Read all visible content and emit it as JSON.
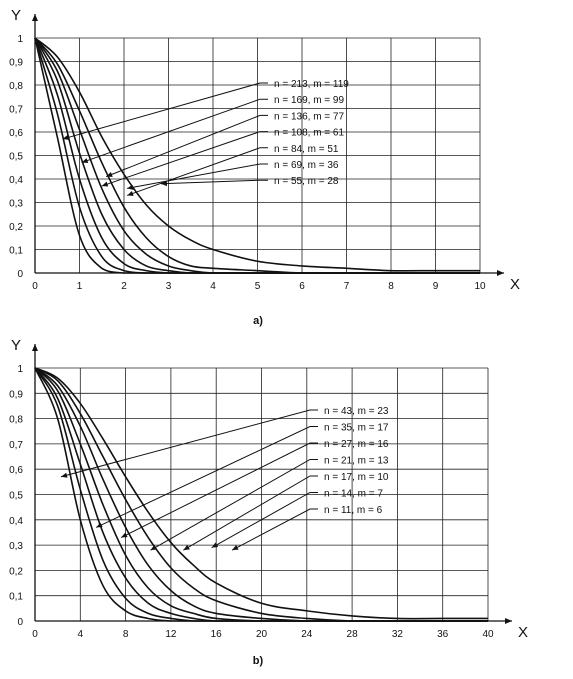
{
  "chart_data": [
    {
      "type": "line",
      "caption": "a)",
      "xlabel": "X",
      "ylabel": "Y",
      "xlim": [
        0,
        10
      ],
      "ylim": [
        0,
        1
      ],
      "grid": true,
      "x_ticks": [
        "0",
        "1",
        "2",
        "3",
        "4",
        "5",
        "6",
        "7",
        "8",
        "9",
        "10"
      ],
      "y_ticks": [
        "0",
        "0,1",
        "0,2",
        "0,3",
        "0,4",
        "0,5",
        "0,6",
        "0,7",
        "0,8",
        "0,9",
        "1"
      ],
      "x": [
        0,
        0.5,
        1,
        1.5,
        2,
        2.5,
        3,
        3.5,
        4,
        5,
        6,
        7,
        8,
        9,
        10
      ],
      "series": [
        {
          "name": "n = 213, m = 119",
          "values": [
            1,
            0.58,
            0.16,
            0.02,
            0,
            0,
            0,
            0,
            0,
            0,
            0,
            0,
            0,
            0,
            0
          ]
        },
        {
          "name": "n = 169, m = 99",
          "values": [
            1,
            0.68,
            0.28,
            0.07,
            0.01,
            0,
            0,
            0,
            0,
            0,
            0,
            0,
            0,
            0,
            0
          ]
        },
        {
          "name": "n = 136, m = 77",
          "values": [
            1,
            0.76,
            0.4,
            0.15,
            0.04,
            0.01,
            0,
            0,
            0,
            0,
            0,
            0,
            0,
            0,
            0
          ]
        },
        {
          "name": "n = 108, m = 61",
          "values": [
            1,
            0.82,
            0.51,
            0.25,
            0.1,
            0.03,
            0.01,
            0,
            0,
            0,
            0,
            0,
            0,
            0,
            0
          ]
        },
        {
          "name": "n = 84, m = 51",
          "values": [
            1,
            0.86,
            0.61,
            0.36,
            0.18,
            0.08,
            0.03,
            0.01,
            0,
            0,
            0,
            0,
            0,
            0,
            0
          ]
        },
        {
          "name": "n = 69, m = 36",
          "values": [
            1,
            0.89,
            0.69,
            0.47,
            0.28,
            0.15,
            0.07,
            0.03,
            0.02,
            0.01,
            0,
            0,
            0,
            0,
            0
          ]
        },
        {
          "name": "n = 55, m = 28",
          "values": [
            1,
            0.92,
            0.77,
            0.58,
            0.42,
            0.29,
            0.2,
            0.14,
            0.1,
            0.05,
            0.03,
            0.02,
            0.01,
            0.01,
            0.01
          ]
        }
      ],
      "legend_position": "upper-right, with arrows to curves"
    },
    {
      "type": "line",
      "caption": "b)",
      "xlabel": "X",
      "ylabel": "Y",
      "xlim": [
        0,
        40
      ],
      "ylim": [
        0,
        1
      ],
      "grid": true,
      "x_ticks": [
        "0",
        "4",
        "8",
        "12",
        "16",
        "20",
        "24",
        "28",
        "32",
        "36",
        "40"
      ],
      "y_ticks": [
        "0",
        "0,1",
        "0,2",
        "0,3",
        "0,4",
        "0,5",
        "0,6",
        "0,7",
        "0,8",
        "0,9",
        "1"
      ],
      "x": [
        0,
        2,
        4,
        6,
        8,
        10,
        12,
        14,
        16,
        20,
        24,
        28,
        32,
        36,
        40
      ],
      "series": [
        {
          "name": "n = 43, m = 23",
          "values": [
            1,
            0.8,
            0.4,
            0.14,
            0.04,
            0.01,
            0,
            0,
            0,
            0,
            0,
            0,
            0,
            0,
            0
          ]
        },
        {
          "name": "n = 35, m = 17",
          "values": [
            1,
            0.85,
            0.52,
            0.24,
            0.09,
            0.03,
            0.01,
            0,
            0,
            0,
            0,
            0,
            0,
            0,
            0
          ]
        },
        {
          "name": "n = 27, m = 16",
          "values": [
            1,
            0.88,
            0.62,
            0.35,
            0.17,
            0.07,
            0.03,
            0.01,
            0,
            0,
            0,
            0,
            0,
            0,
            0
          ]
        },
        {
          "name": "n = 21, m = 13",
          "values": [
            1,
            0.91,
            0.7,
            0.46,
            0.26,
            0.13,
            0.06,
            0.03,
            0.01,
            0,
            0,
            0,
            0,
            0,
            0
          ]
        },
        {
          "name": "n = 17, m = 10",
          "values": [
            1,
            0.93,
            0.77,
            0.56,
            0.37,
            0.22,
            0.12,
            0.06,
            0.03,
            0.01,
            0,
            0,
            0,
            0,
            0
          ]
        },
        {
          "name": "n = 14, m = 7",
          "values": [
            1,
            0.95,
            0.82,
            0.65,
            0.48,
            0.33,
            0.21,
            0.13,
            0.08,
            0.03,
            0.01,
            0,
            0,
            0,
            0
          ]
        },
        {
          "name": "n = 11, m = 6",
          "values": [
            1,
            0.96,
            0.86,
            0.72,
            0.57,
            0.43,
            0.31,
            0.22,
            0.15,
            0.07,
            0.04,
            0.02,
            0.01,
            0.01,
            0.01
          ]
        }
      ],
      "legend_position": "upper-right, with arrows to curves"
    }
  ]
}
